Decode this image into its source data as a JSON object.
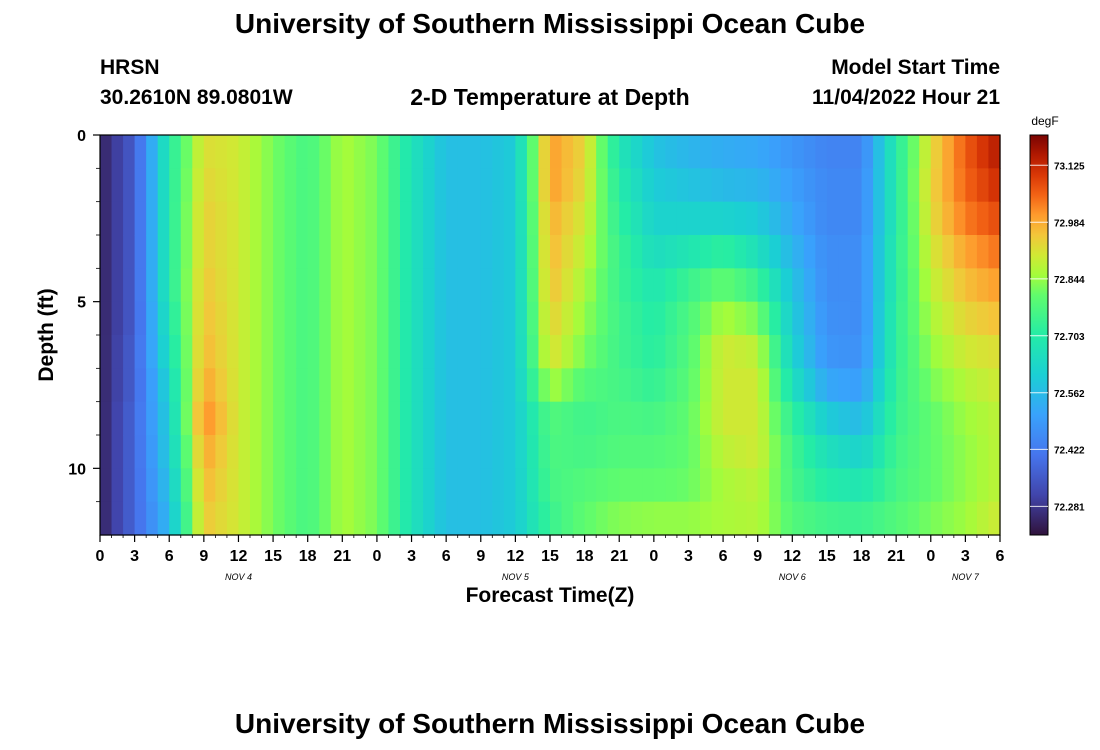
{
  "header": {
    "title_top": "University of Southern Mississippi Ocean Cube",
    "station": "HRSN",
    "coords": "30.2610N  89.0801W",
    "plot_title": "2-D Temperature at Depth",
    "model_start_label": "Model Start Time",
    "model_start_value": "11/04/2022 Hour 21",
    "title_bottom": "University of Southern Mississippi Ocean Cube"
  },
  "chart_data": {
    "type": "heatmap",
    "xlabel": "Forecast Time(Z)",
    "ylabel": "Depth (ft)",
    "x_start": 0,
    "x_end": 78,
    "x_tick_step": 3,
    "x_tick_labels": [
      "0",
      "3",
      "6",
      "9",
      "12",
      "15",
      "18",
      "21",
      "0",
      "3",
      "6",
      "9",
      "12",
      "15",
      "18",
      "21",
      "0",
      "3",
      "6",
      "9",
      "12",
      "15",
      "18",
      "21",
      "0",
      "3",
      "6"
    ],
    "day_labels": [
      {
        "text": "NOV 4",
        "hour": 12
      },
      {
        "text": "NOV 5",
        "hour": 36
      },
      {
        "text": "NOV 6",
        "hour": 60
      },
      {
        "text": "NOV 7",
        "hour": 75
      }
    ],
    "ylim": [
      0,
      12
    ],
    "y_ticks": [
      0,
      5,
      10
    ],
    "depth_levels": [
      0.5,
      1.5,
      2.5,
      3.5,
      4.5,
      5.5,
      6.5,
      7.5,
      8.5,
      9.5,
      10.5,
      11.5
    ],
    "colorbar": {
      "unit": "degF",
      "min": 72.21,
      "max": 73.2,
      "ticks": [
        "73.125",
        "72.984",
        "72.844",
        "72.703",
        "72.562",
        "72.422",
        "72.281"
      ]
    },
    "time_hours": [
      0,
      3,
      6,
      9,
      12,
      15,
      18,
      21,
      24,
      27,
      30,
      33,
      36,
      39,
      42,
      45,
      48,
      51,
      54,
      57,
      60,
      63,
      66,
      69,
      72,
      75,
      78
    ],
    "profiles": [
      {
        "hour": 0,
        "values": [
          72.24,
          72.24,
          72.24,
          72.24,
          72.24,
          72.24,
          72.24,
          72.24,
          72.24,
          72.24,
          72.24,
          72.24
        ]
      },
      {
        "hour": 3,
        "values": [
          72.36,
          72.36,
          72.36,
          72.36,
          72.36,
          72.36,
          72.37,
          72.37,
          72.38,
          72.38,
          72.38,
          72.38
        ]
      },
      {
        "hour": 6,
        "values": [
          72.7,
          72.7,
          72.7,
          72.7,
          72.7,
          72.68,
          72.66,
          72.63,
          72.61,
          72.6,
          72.58,
          72.56
        ]
      },
      {
        "hour": 9,
        "values": [
          72.92,
          72.93,
          72.94,
          72.94,
          72.95,
          72.96,
          72.97,
          72.99,
          73.02,
          72.99,
          72.97,
          72.95
        ]
      },
      {
        "hour": 12,
        "values": [
          72.9,
          72.9,
          72.9,
          72.9,
          72.9,
          72.9,
          72.9,
          72.9,
          72.9,
          72.9,
          72.9,
          72.9
        ]
      },
      {
        "hour": 15,
        "values": [
          72.82,
          72.82,
          72.82,
          72.82,
          72.82,
          72.82,
          72.82,
          72.82,
          72.82,
          72.82,
          72.82,
          72.82
        ]
      },
      {
        "hour": 18,
        "values": [
          72.76,
          72.76,
          72.76,
          72.76,
          72.76,
          72.76,
          72.76,
          72.76,
          72.76,
          72.76,
          72.76,
          72.76
        ]
      },
      {
        "hour": 21,
        "values": [
          72.86,
          72.86,
          72.86,
          72.86,
          72.86,
          72.86,
          72.86,
          72.86,
          72.86,
          72.86,
          72.86,
          72.86
        ]
      },
      {
        "hour": 24,
        "values": [
          72.82,
          72.82,
          72.82,
          72.82,
          72.82,
          72.82,
          72.82,
          72.82,
          72.82,
          72.82,
          72.82,
          72.82
        ]
      },
      {
        "hour": 27,
        "values": [
          72.67,
          72.67,
          72.67,
          72.67,
          72.67,
          72.67,
          72.67,
          72.67,
          72.67,
          72.67,
          72.67,
          72.67
        ]
      },
      {
        "hour": 30,
        "values": [
          72.57,
          72.57,
          72.57,
          72.57,
          72.57,
          72.57,
          72.57,
          72.57,
          72.57,
          72.57,
          72.57,
          72.57
        ]
      },
      {
        "hour": 33,
        "values": [
          72.57,
          72.57,
          72.57,
          72.57,
          72.57,
          72.57,
          72.57,
          72.57,
          72.57,
          72.57,
          72.57,
          72.57
        ]
      },
      {
        "hour": 36,
        "values": [
          72.6,
          72.6,
          72.6,
          72.6,
          72.6,
          72.6,
          72.6,
          72.6,
          72.6,
          72.6,
          72.6,
          72.6
        ]
      },
      {
        "hour": 39,
        "values": [
          73.0,
          73.0,
          72.98,
          72.97,
          72.96,
          72.94,
          72.92,
          72.86,
          72.78,
          72.77,
          72.76,
          72.74
        ]
      },
      {
        "hour": 42,
        "values": [
          72.93,
          72.92,
          72.9,
          72.88,
          72.86,
          72.84,
          72.82,
          72.78,
          72.75,
          72.76,
          72.78,
          72.8
        ]
      },
      {
        "hour": 45,
        "values": [
          72.68,
          72.7,
          72.72,
          72.74,
          72.74,
          72.75,
          72.75,
          72.76,
          72.77,
          72.78,
          72.8,
          72.83
        ]
      },
      {
        "hour": 48,
        "values": [
          72.58,
          72.6,
          72.62,
          72.65,
          72.68,
          72.7,
          72.71,
          72.73,
          72.76,
          72.78,
          72.8,
          72.84
        ]
      },
      {
        "hour": 51,
        "values": [
          72.55,
          72.58,
          72.62,
          72.68,
          72.74,
          72.77,
          72.78,
          72.79,
          72.8,
          72.8,
          72.81,
          72.84
        ]
      },
      {
        "hour": 54,
        "values": [
          72.53,
          72.56,
          72.62,
          72.72,
          72.8,
          72.86,
          72.9,
          72.9,
          72.9,
          72.88,
          72.86,
          72.86
        ]
      },
      {
        "hour": 57,
        "values": [
          72.52,
          72.55,
          72.6,
          72.66,
          72.74,
          72.82,
          72.88,
          72.9,
          72.9,
          72.9,
          72.88,
          72.87
        ]
      },
      {
        "hour": 60,
        "values": [
          72.48,
          72.5,
          72.52,
          72.55,
          72.58,
          72.6,
          72.62,
          72.66,
          72.72,
          72.75,
          72.76,
          72.78
        ]
      },
      {
        "hour": 63,
        "values": [
          72.44,
          72.45,
          72.45,
          72.46,
          72.46,
          72.47,
          72.48,
          72.52,
          72.6,
          72.66,
          72.7,
          72.75
        ]
      },
      {
        "hour": 66,
        "values": [
          72.44,
          72.45,
          72.45,
          72.46,
          72.46,
          72.46,
          72.47,
          72.5,
          72.56,
          72.62,
          72.68,
          72.74
        ]
      },
      {
        "hour": 69,
        "values": [
          72.7,
          72.7,
          72.7,
          72.71,
          72.71,
          72.72,
          72.72,
          72.73,
          72.74,
          72.75,
          72.76,
          72.78
        ]
      },
      {
        "hour": 72,
        "values": [
          72.92,
          72.93,
          72.92,
          72.9,
          72.88,
          72.86,
          72.84,
          72.82,
          72.8,
          72.8,
          72.8,
          72.82
        ]
      },
      {
        "hour": 75,
        "values": [
          73.06,
          73.05,
          73.03,
          72.99,
          72.96,
          72.93,
          72.9,
          72.87,
          72.85,
          72.84,
          72.84,
          72.85
        ]
      },
      {
        "hour": 78,
        "values": [
          73.15,
          73.12,
          73.08,
          73.04,
          73.0,
          72.96,
          72.92,
          72.9,
          72.88,
          72.88,
          72.88,
          72.9
        ]
      }
    ]
  }
}
